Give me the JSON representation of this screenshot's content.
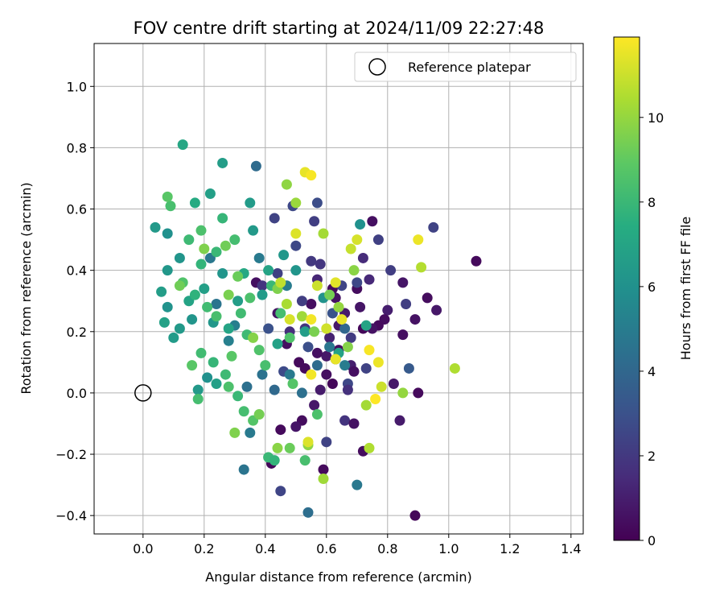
{
  "chart_data": {
    "type": "scatter",
    "title": "FOV centre drift starting at 2024/11/09 22:27:48",
    "xlabel": "Angular distance from reference (arcmin)",
    "ylabel": "Rotation from reference (arcmin)",
    "xlim": [
      -0.16,
      1.44
    ],
    "ylim": [
      -0.46,
      1.14
    ],
    "xticks": [
      0.0,
      0.2,
      0.4,
      0.6,
      0.8,
      1.0,
      1.2,
      1.4
    ],
    "xtick_labels": [
      "0.0",
      "0.2",
      "0.4",
      "0.6",
      "0.8",
      "1.0",
      "1.2",
      "1.4"
    ],
    "yticks": [
      -0.4,
      -0.2,
      0.0,
      0.2,
      0.4,
      0.6,
      0.8,
      1.0
    ],
    "ytick_labels": [
      "−0.4",
      "−0.2",
      "0.0",
      "0.2",
      "0.4",
      "0.6",
      "0.8",
      "1.0"
    ],
    "grid": true,
    "colormap": "viridis",
    "colorbar": {
      "label": "Hours from first FF file",
      "min": 0,
      "max": 11.9,
      "ticks": [
        0,
        2,
        4,
        6,
        8,
        10
      ],
      "tick_labels": [
        "0",
        "2",
        "4",
        "6",
        "8",
        "10"
      ]
    },
    "legend": {
      "placement": "upper right",
      "entries": [
        {
          "label": "Reference platepar",
          "marker": "open-circle"
        }
      ]
    },
    "reference_point": {
      "x": 0.0,
      "y": 0.0
    },
    "points": [
      {
        "x": 1.09,
        "y": 0.43,
        "t": 0.3
      },
      {
        "x": 0.89,
        "y": -0.4,
        "t": 0.2
      },
      {
        "x": 0.9,
        "y": 0.0,
        "t": 0.3
      },
      {
        "x": 0.96,
        "y": 0.27,
        "t": 0.8
      },
      {
        "x": 0.93,
        "y": 0.31,
        "t": 0.4
      },
      {
        "x": 0.89,
        "y": 0.24,
        "t": 0.6
      },
      {
        "x": 0.85,
        "y": 0.19,
        "t": 0.5
      },
      {
        "x": 0.85,
        "y": 0.36,
        "t": 0.7
      },
      {
        "x": 0.84,
        "y": -0.09,
        "t": 0.9
      },
      {
        "x": 0.82,
        "y": 0.03,
        "t": 0.8
      },
      {
        "x": 0.8,
        "y": 0.27,
        "t": 1.0
      },
      {
        "x": 0.79,
        "y": 0.24,
        "t": 0.4
      },
      {
        "x": 0.75,
        "y": 0.56,
        "t": 0.5
      },
      {
        "x": 0.77,
        "y": 0.5,
        "t": 2.3
      },
      {
        "x": 0.74,
        "y": 0.37,
        "t": 1.4
      },
      {
        "x": 0.77,
        "y": 0.22,
        "t": 0.3
      },
      {
        "x": 0.75,
        "y": 0.21,
        "t": 0.6
      },
      {
        "x": 0.72,
        "y": 0.21,
        "t": 0.2
      },
      {
        "x": 0.72,
        "y": -0.19,
        "t": 0.4
      },
      {
        "x": 0.71,
        "y": 0.28,
        "t": 0.7
      },
      {
        "x": 0.68,
        "y": 0.09,
        "t": 1.0
      },
      {
        "x": 0.69,
        "y": 0.07,
        "t": 0.5
      },
      {
        "x": 0.67,
        "y": 0.03,
        "t": 2.6
      },
      {
        "x": 0.66,
        "y": -0.09,
        "t": 1.8
      },
      {
        "x": 0.69,
        "y": -0.1,
        "t": 0.6
      },
      {
        "x": 0.64,
        "y": 0.14,
        "t": 0.4
      },
      {
        "x": 0.64,
        "y": 0.22,
        "t": 0.8
      },
      {
        "x": 0.62,
        "y": 0.34,
        "t": 0.3
      },
      {
        "x": 0.61,
        "y": 0.18,
        "t": 1.1
      },
      {
        "x": 0.6,
        "y": 0.06,
        "t": 0.5
      },
      {
        "x": 0.59,
        "y": -0.25,
        "t": 0.3
      },
      {
        "x": 0.6,
        "y": 0.12,
        "t": 0.8
      },
      {
        "x": 0.57,
        "y": 0.37,
        "t": 1.3
      },
      {
        "x": 0.55,
        "y": 0.29,
        "t": 0.5
      },
      {
        "x": 0.53,
        "y": 0.08,
        "t": 0.3
      },
      {
        "x": 0.52,
        "y": -0.09,
        "t": 0.4
      },
      {
        "x": 0.5,
        "y": -0.11,
        "t": 0.7
      },
      {
        "x": 0.47,
        "y": 0.16,
        "t": 0.5
      },
      {
        "x": 0.45,
        "y": -0.12,
        "t": 0.3
      },
      {
        "x": 0.44,
        "y": 0.26,
        "t": 0.6
      },
      {
        "x": 0.42,
        "y": -0.23,
        "t": 0.2
      },
      {
        "x": 0.37,
        "y": 0.36,
        "t": 0.5
      },
      {
        "x": 0.58,
        "y": 0.01,
        "t": 0.9
      },
      {
        "x": 0.62,
        "y": 0.03,
        "t": 0.2
      },
      {
        "x": 0.63,
        "y": 0.31,
        "t": 0.6
      },
      {
        "x": 0.7,
        "y": 0.34,
        "t": 0.4
      },
      {
        "x": 0.66,
        "y": 0.26,
        "t": 0.9
      },
      {
        "x": 0.57,
        "y": 0.13,
        "t": 0.5
      },
      {
        "x": 0.51,
        "y": 0.1,
        "t": 0.3
      },
      {
        "x": 0.56,
        "y": -0.04,
        "t": 0.8
      },
      {
        "x": 0.95,
        "y": 0.54,
        "t": 2.4
      },
      {
        "x": 0.86,
        "y": 0.29,
        "t": 2.2
      },
      {
        "x": 0.87,
        "y": 0.08,
        "t": 3.4
      },
      {
        "x": 0.81,
        "y": 0.4,
        "t": 2.2
      },
      {
        "x": 0.73,
        "y": 0.08,
        "t": 2.4
      },
      {
        "x": 0.7,
        "y": 0.36,
        "t": 2.6
      },
      {
        "x": 0.68,
        "y": 0.18,
        "t": 2.1
      },
      {
        "x": 0.65,
        "y": 0.35,
        "t": 2.5
      },
      {
        "x": 0.62,
        "y": 0.26,
        "t": 3.1
      },
      {
        "x": 0.6,
        "y": -0.16,
        "t": 2.4
      },
      {
        "x": 0.57,
        "y": 0.62,
        "t": 2.8
      },
      {
        "x": 0.49,
        "y": 0.61,
        "t": 2.6
      },
      {
        "x": 0.43,
        "y": 0.57,
        "t": 2.4
      },
      {
        "x": 0.45,
        "y": -0.32,
        "t": 2.5
      },
      {
        "x": 0.52,
        "y": 0.3,
        "t": 2.2
      },
      {
        "x": 0.5,
        "y": 0.48,
        "t": 2.6
      },
      {
        "x": 0.54,
        "y": 0.15,
        "t": 2.9
      },
      {
        "x": 0.46,
        "y": 0.07,
        "t": 2.7
      },
      {
        "x": 0.44,
        "y": 0.39,
        "t": 2.3
      },
      {
        "x": 0.56,
        "y": 0.56,
        "t": 2.2
      },
      {
        "x": 0.55,
        "y": 0.43,
        "t": 2.0
      },
      {
        "x": 0.58,
        "y": 0.42,
        "t": 1.9
      },
      {
        "x": 0.67,
        "y": 0.01,
        "t": 1.7
      },
      {
        "x": 0.72,
        "y": 0.44,
        "t": 1.5
      },
      {
        "x": 0.48,
        "y": 0.2,
        "t": 1.6
      },
      {
        "x": 0.39,
        "y": 0.35,
        "t": 1.9
      },
      {
        "x": 0.41,
        "y": 0.21,
        "t": 3.0
      },
      {
        "x": 0.53,
        "y": 0.21,
        "t": 1.8
      },
      {
        "x": 0.63,
        "y": 0.11,
        "t": 2.1
      },
      {
        "x": 0.37,
        "y": 0.74,
        "t": 4.2
      },
      {
        "x": 0.54,
        "y": -0.39,
        "t": 4.3
      },
      {
        "x": 0.7,
        "y": -0.3,
        "t": 4.8
      },
      {
        "x": 0.33,
        "y": -0.25,
        "t": 4.6
      },
      {
        "x": 0.35,
        "y": -0.13,
        "t": 4.9
      },
      {
        "x": 0.39,
        "y": 0.06,
        "t": 4.5
      },
      {
        "x": 0.43,
        "y": 0.01,
        "t": 4.1
      },
      {
        "x": 0.38,
        "y": 0.44,
        "t": 4.9
      },
      {
        "x": 0.3,
        "y": 0.22,
        "t": 5.1
      },
      {
        "x": 0.52,
        "y": 0.0,
        "t": 4.4
      },
      {
        "x": 0.66,
        "y": 0.21,
        "t": 4.0
      },
      {
        "x": 0.61,
        "y": 0.15,
        "t": 4.7
      },
      {
        "x": 0.47,
        "y": 0.35,
        "t": 5.0
      },
      {
        "x": 0.22,
        "y": 0.44,
        "t": 4.8
      },
      {
        "x": 0.28,
        "y": 0.17,
        "t": 5.2
      },
      {
        "x": 0.24,
        "y": 0.29,
        "t": 4.6
      },
      {
        "x": 0.57,
        "y": 0.09,
        "t": 4.2
      },
      {
        "x": 0.66,
        "y": 0.09,
        "t": 5.0
      },
      {
        "x": 0.34,
        "y": 0.02,
        "t": 4.4
      },
      {
        "x": 0.48,
        "y": 0.06,
        "t": 4.9
      },
      {
        "x": 0.13,
        "y": 0.81,
        "t": 7.1
      },
      {
        "x": 0.26,
        "y": 0.75,
        "t": 6.6
      },
      {
        "x": 0.22,
        "y": 0.65,
        "t": 6.7
      },
      {
        "x": 0.17,
        "y": 0.62,
        "t": 7.3
      },
      {
        "x": 0.35,
        "y": 0.62,
        "t": 6.5
      },
      {
        "x": 0.04,
        "y": 0.54,
        "t": 6.4
      },
      {
        "x": 0.08,
        "y": 0.52,
        "t": 6.0
      },
      {
        "x": 0.12,
        "y": 0.44,
        "t": 6.2
      },
      {
        "x": 0.08,
        "y": 0.4,
        "t": 6.3
      },
      {
        "x": 0.06,
        "y": 0.33,
        "t": 6.6
      },
      {
        "x": 0.08,
        "y": 0.28,
        "t": 6.1
      },
      {
        "x": 0.07,
        "y": 0.23,
        "t": 6.8
      },
      {
        "x": 0.1,
        "y": 0.18,
        "t": 6.5
      },
      {
        "x": 0.16,
        "y": 0.24,
        "t": 6.2
      },
      {
        "x": 0.18,
        "y": 0.01,
        "t": 6.4
      },
      {
        "x": 0.21,
        "y": 0.05,
        "t": 6.0
      },
      {
        "x": 0.24,
        "y": 0.03,
        "t": 6.7
      },
      {
        "x": 0.28,
        "y": 0.21,
        "t": 7.0
      },
      {
        "x": 0.33,
        "y": 0.39,
        "t": 7.2
      },
      {
        "x": 0.36,
        "y": 0.53,
        "t": 6.4
      },
      {
        "x": 0.41,
        "y": 0.4,
        "t": 6.9
      },
      {
        "x": 0.46,
        "y": 0.45,
        "t": 6.3
      },
      {
        "x": 0.5,
        "y": 0.4,
        "t": 6.2
      },
      {
        "x": 0.53,
        "y": 0.2,
        "t": 6.6
      },
      {
        "x": 0.59,
        "y": 0.31,
        "t": 6.1
      },
      {
        "x": 0.64,
        "y": 0.13,
        "t": 6.8
      },
      {
        "x": 0.71,
        "y": 0.55,
        "t": 6.0
      },
      {
        "x": 0.73,
        "y": 0.22,
        "t": 6.9
      },
      {
        "x": 0.39,
        "y": 0.32,
        "t": 6.5
      },
      {
        "x": 0.26,
        "y": 0.39,
        "t": 6.2
      },
      {
        "x": 0.2,
        "y": 0.34,
        "t": 6.7
      },
      {
        "x": 0.15,
        "y": 0.3,
        "t": 6.9
      },
      {
        "x": 0.12,
        "y": 0.21,
        "t": 6.4
      },
      {
        "x": 0.31,
        "y": 0.3,
        "t": 6.6
      },
      {
        "x": 0.44,
        "y": 0.16,
        "t": 6.8
      },
      {
        "x": 0.23,
        "y": 0.23,
        "t": 6.3
      },
      {
        "x": 0.09,
        "y": 0.61,
        "t": 8.4
      },
      {
        "x": 0.08,
        "y": 0.64,
        "t": 8.8
      },
      {
        "x": 0.19,
        "y": 0.53,
        "t": 8.5
      },
      {
        "x": 0.15,
        "y": 0.5,
        "t": 8.1
      },
      {
        "x": 0.26,
        "y": 0.57,
        "t": 7.9
      },
      {
        "x": 0.3,
        "y": 0.5,
        "t": 8.3
      },
      {
        "x": 0.19,
        "y": 0.42,
        "t": 7.8
      },
      {
        "x": 0.24,
        "y": 0.46,
        "t": 8.0
      },
      {
        "x": 0.13,
        "y": 0.36,
        "t": 8.6
      },
      {
        "x": 0.17,
        "y": 0.32,
        "t": 7.7
      },
      {
        "x": 0.21,
        "y": 0.28,
        "t": 8.2
      },
      {
        "x": 0.24,
        "y": 0.25,
        "t": 8.4
      },
      {
        "x": 0.19,
        "y": 0.13,
        "t": 8.2
      },
      {
        "x": 0.23,
        "y": 0.1,
        "t": 7.9
      },
      {
        "x": 0.27,
        "y": 0.06,
        "t": 8.1
      },
      {
        "x": 0.28,
        "y": 0.02,
        "t": 8.5
      },
      {
        "x": 0.31,
        "y": -0.01,
        "t": 8.0
      },
      {
        "x": 0.33,
        "y": -0.06,
        "t": 8.3
      },
      {
        "x": 0.36,
        "y": -0.09,
        "t": 8.7
      },
      {
        "x": 0.41,
        "y": -0.21,
        "t": 8.0
      },
      {
        "x": 0.43,
        "y": -0.22,
        "t": 7.8
      },
      {
        "x": 0.4,
        "y": 0.09,
        "t": 8.4
      },
      {
        "x": 0.38,
        "y": 0.14,
        "t": 8.6
      },
      {
        "x": 0.34,
        "y": 0.19,
        "t": 8.1
      },
      {
        "x": 0.29,
        "y": 0.12,
        "t": 8.8
      },
      {
        "x": 0.32,
        "y": 0.26,
        "t": 8.2
      },
      {
        "x": 0.35,
        "y": 0.31,
        "t": 8.5
      },
      {
        "x": 0.42,
        "y": 0.35,
        "t": 8.0
      },
      {
        "x": 0.45,
        "y": 0.26,
        "t": 8.3
      },
      {
        "x": 0.48,
        "y": 0.18,
        "t": 8.6
      },
      {
        "x": 0.49,
        "y": 0.03,
        "t": 8.7
      },
      {
        "x": 0.53,
        "y": -0.22,
        "t": 8.4
      },
      {
        "x": 0.57,
        "y": -0.07,
        "t": 8.5
      },
      {
        "x": 0.18,
        "y": -0.02,
        "t": 8.3
      },
      {
        "x": 0.16,
        "y": 0.09,
        "t": 8.8
      },
      {
        "x": 0.31,
        "y": 0.38,
        "t": 9.2
      },
      {
        "x": 0.28,
        "y": 0.32,
        "t": 9.5
      },
      {
        "x": 0.27,
        "y": 0.48,
        "t": 9.3
      },
      {
        "x": 0.36,
        "y": 0.18,
        "t": 9.7
      },
      {
        "x": 0.3,
        "y": -0.13,
        "t": 9.6
      },
      {
        "x": 0.38,
        "y": -0.07,
        "t": 9.4
      },
      {
        "x": 0.44,
        "y": -0.18,
        "t": 9.8
      },
      {
        "x": 0.48,
        "y": -0.18,
        "t": 9.2
      },
      {
        "x": 0.54,
        "y": -0.17,
        "t": 9.9
      },
      {
        "x": 0.59,
        "y": -0.28,
        "t": 10.2
      },
      {
        "x": 0.47,
        "y": 0.68,
        "t": 9.9
      },
      {
        "x": 0.5,
        "y": 0.62,
        "t": 10.1
      },
      {
        "x": 0.59,
        "y": 0.52,
        "t": 10.3
      },
      {
        "x": 0.69,
        "y": 0.4,
        "t": 9.8
      },
      {
        "x": 0.64,
        "y": 0.28,
        "t": 10.0
      },
      {
        "x": 0.56,
        "y": 0.2,
        "t": 9.5
      },
      {
        "x": 0.47,
        "y": 0.29,
        "t": 10.4
      },
      {
        "x": 0.44,
        "y": 0.34,
        "t": 9.6
      },
      {
        "x": 0.52,
        "y": 0.25,
        "t": 10.2
      },
      {
        "x": 0.61,
        "y": 0.32,
        "t": 9.4
      },
      {
        "x": 0.67,
        "y": 0.15,
        "t": 9.7
      },
      {
        "x": 0.73,
        "y": -0.04,
        "t": 10.3
      },
      {
        "x": 0.74,
        "y": -0.18,
        "t": 10.5
      },
      {
        "x": 0.85,
        "y": 0.0,
        "t": 10.0
      },
      {
        "x": 0.91,
        "y": 0.41,
        "t": 10.6
      },
      {
        "x": 1.02,
        "y": 0.08,
        "t": 10.5
      },
      {
        "x": 0.12,
        "y": 0.35,
        "t": 9.3
      },
      {
        "x": 0.2,
        "y": 0.47,
        "t": 9.6
      },
      {
        "x": 0.53,
        "y": 0.72,
        "t": 11.5
      },
      {
        "x": 0.55,
        "y": 0.71,
        "t": 11.8
      },
      {
        "x": 0.5,
        "y": 0.52,
        "t": 11.3
      },
      {
        "x": 0.9,
        "y": 0.5,
        "t": 11.6
      },
      {
        "x": 0.7,
        "y": 0.5,
        "t": 11.2
      },
      {
        "x": 0.68,
        "y": 0.47,
        "t": 10.9
      },
      {
        "x": 0.63,
        "y": 0.36,
        "t": 11.4
      },
      {
        "x": 0.57,
        "y": 0.35,
        "t": 11.0
      },
      {
        "x": 0.55,
        "y": 0.24,
        "t": 11.7
      },
      {
        "x": 0.6,
        "y": 0.21,
        "t": 11.1
      },
      {
        "x": 0.65,
        "y": 0.24,
        "t": 11.5
      },
      {
        "x": 0.74,
        "y": 0.14,
        "t": 11.8
      },
      {
        "x": 0.77,
        "y": 0.1,
        "t": 11.6
      },
      {
        "x": 0.76,
        "y": -0.02,
        "t": 11.9
      },
      {
        "x": 0.55,
        "y": 0.06,
        "t": 11.7
      },
      {
        "x": 0.54,
        "y": -0.16,
        "t": 11.3
      },
      {
        "x": 0.63,
        "y": 0.11,
        "t": 11.5
      },
      {
        "x": 0.78,
        "y": 0.02,
        "t": 11.0
      },
      {
        "x": 0.48,
        "y": 0.24,
        "t": 11.2
      },
      {
        "x": 0.45,
        "y": 0.36,
        "t": 10.8
      }
    ]
  }
}
